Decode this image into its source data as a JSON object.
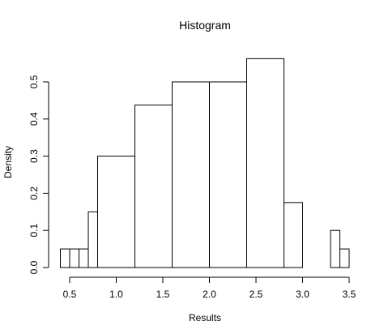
{
  "chart_data": {
    "type": "bar",
    "subtype": "histogram",
    "title": "Histogram",
    "xlabel": "Results",
    "ylabel": "Density",
    "xlim": [
      0.4,
      3.5
    ],
    "ylim": [
      0,
      0.56
    ],
    "x_ticks": [
      0.5,
      1.0,
      1.5,
      2.0,
      2.5,
      3.0,
      3.5
    ],
    "x_tick_labels": [
      "0.5",
      "1.0",
      "1.5",
      "2.0",
      "2.5",
      "3.0",
      "3.5"
    ],
    "y_ticks": [
      0.0,
      0.1,
      0.2,
      0.3,
      0.4,
      0.5
    ],
    "y_tick_labels": [
      "0.0",
      "0.1",
      "0.2",
      "0.3",
      "0.4",
      "0.5"
    ],
    "grid": false,
    "legend": "none",
    "bins": [
      {
        "x0": 0.4,
        "x1": 0.5,
        "density": 0.05
      },
      {
        "x0": 0.5,
        "x1": 0.6,
        "density": 0.05
      },
      {
        "x0": 0.6,
        "x1": 0.7,
        "density": 0.05
      },
      {
        "x0": 0.7,
        "x1": 0.8,
        "density": 0.15
      },
      {
        "x0": 0.8,
        "x1": 1.2,
        "density": 0.3
      },
      {
        "x0": 1.2,
        "x1": 1.6,
        "density": 0.4375
      },
      {
        "x0": 1.6,
        "x1": 2.0,
        "density": 0.5
      },
      {
        "x0": 2.0,
        "x1": 2.4,
        "density": 0.5
      },
      {
        "x0": 2.4,
        "x1": 2.8,
        "density": 0.5625
      },
      {
        "x0": 2.8,
        "x1": 3.0,
        "density": 0.175
      },
      {
        "x0": 3.0,
        "x1": 3.3,
        "density": 0.0
      },
      {
        "x0": 3.3,
        "x1": 3.4,
        "density": 0.1
      },
      {
        "x0": 3.4,
        "x1": 3.5,
        "density": 0.05
      }
    ],
    "colors": {
      "bar_fill": "#ffffff",
      "bar_stroke": "#000000",
      "axis": "#000000"
    }
  }
}
